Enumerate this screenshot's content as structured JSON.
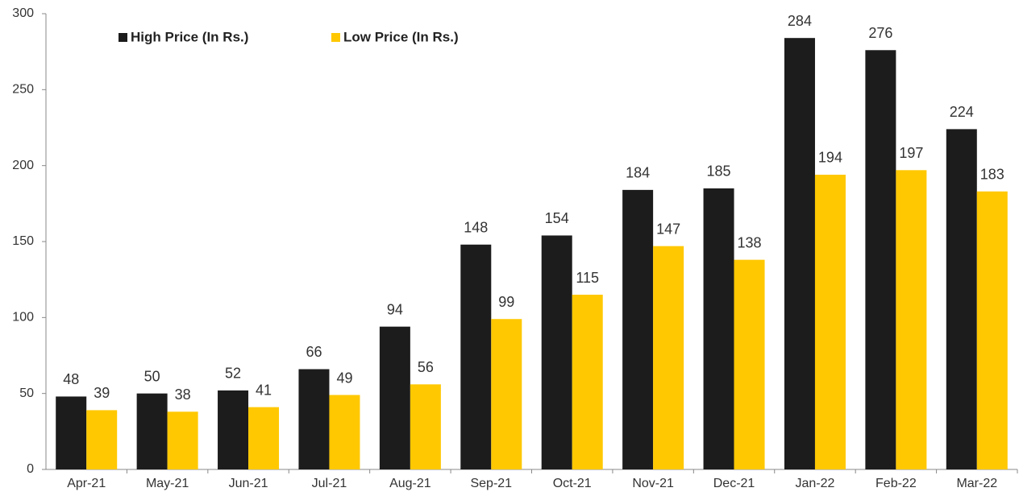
{
  "chart_data": {
    "type": "bar",
    "categories": [
      "Apr-21",
      "May-21",
      "Jun-21",
      "Jul-21",
      "Aug-21",
      "Sep-21",
      "Oct-21",
      "Nov-21",
      "Dec-21",
      "Jan-22",
      "Feb-22",
      "Mar-22"
    ],
    "series": [
      {
        "name": "High Price (In Rs.)",
        "color": "#1c1c1c",
        "values": [
          48,
          50,
          52,
          66,
          94,
          148,
          154,
          184,
          185,
          284,
          276,
          224
        ]
      },
      {
        "name": "Low Price (In Rs.)",
        "color": "#ffc800",
        "values": [
          39,
          38,
          41,
          49,
          56,
          99,
          115,
          147,
          138,
          194,
          197,
          183
        ]
      }
    ],
    "ylim": [
      0,
      300
    ],
    "yticks": [
      0,
      50,
      100,
      150,
      200,
      250,
      300
    ],
    "grid": false
  }
}
